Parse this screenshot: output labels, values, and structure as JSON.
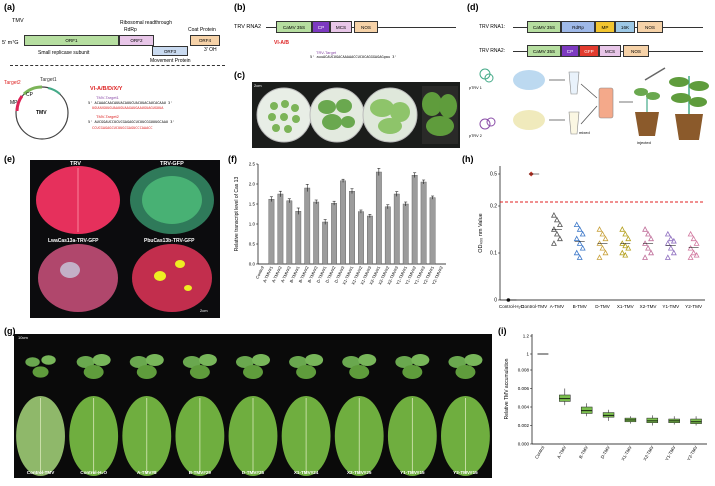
{
  "panels": {
    "a": "(a)",
    "b": "(b)",
    "c": "(c)",
    "d": "(d)",
    "e": "(e)",
    "f": "(f)",
    "g": "(g)",
    "h": "(h)",
    "i": "(i)"
  },
  "a": {
    "tmv": "TMV",
    "ribosomal": "Ribosomal readthrough",
    "rdrp": "RdRp",
    "coat": "Coat Protein",
    "cap": "5' m⁷G",
    "oh": "3' OH",
    "orf1": "ORF1",
    "orf2": "ORF2",
    "orf3": "ORF3",
    "orf4": "ORF4",
    "small": "Small replicase subunit",
    "movement": "Movement Protein",
    "target1": "Target1",
    "target2": "Target2",
    "circle_label": "TMV",
    "mp": "MP",
    "cp": "CP",
    "vi": "VI-A/B/D/X/Y",
    "t1_label": "TMV-Target1",
    "t1_seq": "5' ACAAACAACAUUACAUUCUACUUACAUCACAAU 3'",
    "t1_seq2": "UGUUUGUUGUAAUGUAAGAUGAAUGUAGUGUUA",
    "t2_label": "TMV-Target2",
    "t2_seq": "5' AUCGGAUCCUCUCGAGAGCUCUUCGGUUUGCAAU 3'",
    "t2_seq2": "CCUCGAGAGCUCUUGCGAGUCCCAAACC"
  },
  "b": {
    "rna2": "TRV RNA2",
    "s35": "CaMV 35S",
    "cp": "CP",
    "mcs": "MCS",
    "nos": "NOS",
    "vi": "VI-A/B",
    "target": "TRV-Target",
    "seq": "5' auuACAUCUGACAAAAACCUCUCAGGGAGAGgau 3'"
  },
  "c": {
    "scale": "2cm"
  },
  "d": {
    "rna1": "TRV RNA1:",
    "rna2": "TRV RNA2:",
    "s35": "CaMV 35S",
    "rdrp": "RdRp",
    "mp": "MP",
    "k16": "16K",
    "nos": "NOS",
    "cp": "CP",
    "gfp": "GFP",
    "mcs": "MCS",
    "ptrv1": "pTRV 1",
    "ptrv2": "pTRV 2",
    "mixed": "mixed",
    "injected": "injected"
  },
  "e": {
    "trv": "TRV",
    "trvgfp": "TRV-GFP",
    "lwa": "LwaCas13a-TRV-GFP",
    "pbu": "PbuCas13b-TRV-GFP",
    "scale": "2cm"
  },
  "g": {
    "scale": "10cm",
    "labels": [
      "Control-TMV",
      "Control-H₂O",
      "A-TMV#8",
      "B-TMV#29",
      "D-TMV#25",
      "X1-TMV#24",
      "X2-TMV#25",
      "Y1-TMV#15",
      "Y2-TMV#15"
    ]
  },
  "chart_data": [
    {
      "panel": "f",
      "type": "bar",
      "ylabel": "Relative transcript level of Cas 13",
      "ylim": [
        0,
        2.5
      ],
      "yticks": [
        0,
        0.5,
        1.0,
        1.5,
        2.0,
        2.5
      ],
      "categories": [
        "Control",
        "A-TMV#1",
        "A-TMV#2",
        "A-TMV#3",
        "B-TMV#1",
        "B-TMV#2",
        "B-TMV#3",
        "D-TMV#1",
        "D-TMV#2",
        "D-TMV#3",
        "X1-TMV#1",
        "X1-TMV#2",
        "X1-TMV#3",
        "X2-TMV#1",
        "X2-TMV#2",
        "X2-TMV#3",
        "Y1-TMV#1",
        "Y1-TMV#2",
        "Y1-TMV#3",
        "Y2-TMV#1",
        "Y2-TMV#2"
      ],
      "values": [
        0,
        1.62,
        1.75,
        1.58,
        1.32,
        1.9,
        1.55,
        1.05,
        1.52,
        2.08,
        1.82,
        1.31,
        1.2,
        2.3,
        1.43,
        1.75,
        1.5,
        2.22,
        2.05,
        1.66,
        0
      ],
      "errors": [
        0,
        0.06,
        0.07,
        0.05,
        0.08,
        0.09,
        0.05,
        0.06,
        0.05,
        0.04,
        0.06,
        0.04,
        0.04,
        0.09,
        0.05,
        0.06,
        0.05,
        0.06,
        0.05,
        0.04,
        0
      ]
    },
    {
      "panel": "h",
      "type": "scatter",
      "ylabel": "OD₄₀₀ nm Value",
      "yticks": [
        "0",
        "0.1",
        "0.2",
        "0.5"
      ],
      "threshold": 0.2,
      "categories": [
        "Control-H₂O",
        "Control-TMV",
        "A-TMV",
        "B-TMV",
        "D-TMV",
        "X1-TMV",
        "X2-TMV",
        "Y1-TMV",
        "Y2-TMV"
      ],
      "groups": [
        {
          "name": "Control-H₂O",
          "values": [
            0.0
          ],
          "color": "#111111",
          "marker": "dot"
        },
        {
          "name": "Control-TMV",
          "values": [
            0.55
          ],
          "color": "#c0392b",
          "marker": "diamond"
        },
        {
          "name": "A-TMV",
          "values": [
            0.18,
            0.17,
            0.16,
            0.15,
            0.14,
            0.13,
            0.12
          ],
          "color": "#555555",
          "marker": "triangle"
        },
        {
          "name": "B-TMV",
          "values": [
            0.16,
            0.15,
            0.14,
            0.13,
            0.12,
            0.11,
            0.1,
            0.09
          ],
          "color": "#3d78c9",
          "marker": "triangle"
        },
        {
          "name": "D-TMV",
          "values": [
            0.15,
            0.14,
            0.13,
            0.12,
            0.11,
            0.1,
            0.09
          ],
          "color": "#c9a23d",
          "marker": "triangle"
        },
        {
          "name": "X1-TMV",
          "values": [
            0.15,
            0.14,
            0.13,
            0.12,
            0.115,
            0.11,
            0.1,
            0.095
          ],
          "color": "#b5a11f",
          "marker": "triangle"
        },
        {
          "name": "X2-TMV",
          "values": [
            0.15,
            0.14,
            0.13,
            0.12,
            0.11,
            0.1,
            0.09
          ],
          "color": "#c06f9a",
          "marker": "triangle"
        },
        {
          "name": "Y1-TMV",
          "values": [
            0.14,
            0.13,
            0.125,
            0.12,
            0.11,
            0.1,
            0.09
          ],
          "color": "#9070c0",
          "marker": "triangle"
        },
        {
          "name": "Y2-TMV",
          "values": [
            0.14,
            0.13,
            0.12,
            0.11,
            0.1,
            0.095,
            0.09
          ],
          "color": "#d27aa0",
          "marker": "triangle"
        }
      ]
    },
    {
      "panel": "i",
      "type": "box",
      "ylabel": "Relative TMV accumulation",
      "yticks": [
        "0.000",
        "0.002",
        "0.004",
        "0.006",
        "0.008",
        "1",
        "1.2"
      ],
      "categories": [
        "Control",
        "A-TMV",
        "B-TMV",
        "D-TMV",
        "X1-TMV",
        "X2-TMV",
        "Y1-TMV",
        "Y2-TMV"
      ],
      "boxes": [
        {
          "min": 1.0,
          "q1": 1.0,
          "median": 1.0,
          "q3": 1.0,
          "max": 1.0
        },
        {
          "min": 0.0042,
          "q1": 0.0046,
          "median": 0.0049,
          "q3": 0.0053,
          "max": 0.006
        },
        {
          "min": 0.003,
          "q1": 0.0033,
          "median": 0.0036,
          "q3": 0.004,
          "max": 0.0044
        },
        {
          "min": 0.0025,
          "q1": 0.0029,
          "median": 0.0031,
          "q3": 0.0034,
          "max": 0.0037
        },
        {
          "min": 0.0022,
          "q1": 0.0024,
          "median": 0.0026,
          "q3": 0.0028,
          "max": 0.003
        },
        {
          "min": 0.002,
          "q1": 0.0023,
          "median": 0.0025,
          "q3": 0.0028,
          "max": 0.0031
        },
        {
          "min": 0.0021,
          "q1": 0.0023,
          "median": 0.0025,
          "q3": 0.0027,
          "max": 0.003
        },
        {
          "min": 0.002,
          "q1": 0.0022,
          "median": 0.0024,
          "q3": 0.0027,
          "max": 0.003
        }
      ],
      "color": "#7bbf4e"
    }
  ]
}
